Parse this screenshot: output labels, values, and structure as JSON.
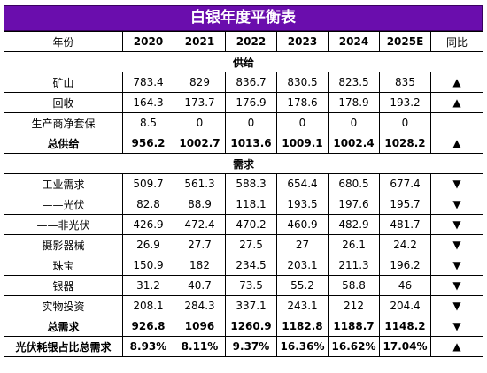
{
  "title": "白银年度平衡表",
  "header": {
    "label": "年份",
    "years": [
      "2020",
      "2021",
      "2022",
      "2023",
      "2024",
      "2025E"
    ],
    "change": "同比"
  },
  "supply": {
    "section_label": "供给",
    "rows": [
      {
        "label": "矿山",
        "values": [
          "783.4",
          "829",
          "836.7",
          "830.5",
          "823.5",
          "835"
        ],
        "trend": "▲"
      },
      {
        "label": "回收",
        "values": [
          "164.3",
          "173.7",
          "176.9",
          "178.6",
          "178.9",
          "193.2"
        ],
        "trend": "▲"
      },
      {
        "label": "生产商净套保",
        "values": [
          "8.5",
          "0",
          "0",
          "0",
          "0",
          "0"
        ],
        "trend": ""
      }
    ],
    "total": {
      "label": "总供给",
      "values": [
        "956.2",
        "1002.7",
        "1013.6",
        "1009.1",
        "1002.4",
        "1028.2"
      ],
      "trend": "▲"
    }
  },
  "demand": {
    "section_label": "需求",
    "rows": [
      {
        "label": "工业需求",
        "values": [
          "509.7",
          "561.3",
          "588.3",
          "654.4",
          "680.5",
          "677.4"
        ],
        "trend": "▼"
      },
      {
        "label": "——光伏",
        "values": [
          "82.8",
          "88.9",
          "118.1",
          "193.5",
          "197.6",
          "195.7"
        ],
        "trend": "▼"
      },
      {
        "label": "——非光伏",
        "values": [
          "426.9",
          "472.4",
          "470.2",
          "460.9",
          "482.9",
          "481.7"
        ],
        "trend": "▼"
      },
      {
        "label": "摄影器械",
        "values": [
          "26.9",
          "27.7",
          "27.5",
          "27",
          "26.1",
          "24.2"
        ],
        "trend": "▼"
      },
      {
        "label": "珠宝",
        "values": [
          "150.9",
          "182",
          "234.5",
          "203.1",
          "211.3",
          "196.2"
        ],
        "trend": "▼"
      },
      {
        "label": "银器",
        "values": [
          "31.2",
          "40.7",
          "73.5",
          "55.2",
          "58.8",
          "46"
        ],
        "trend": "▼"
      },
      {
        "label": "实物投资",
        "values": [
          "208.1",
          "284.3",
          "337.1",
          "243.1",
          "212",
          "204.4"
        ],
        "trend": "▼"
      }
    ],
    "total": {
      "label": "总需求",
      "values": [
        "926.8",
        "1096",
        "1260.9",
        "1182.8",
        "1188.7",
        "1148.2"
      ],
      "trend": "▼"
    }
  },
  "pv_ratio": {
    "label": "光伏耗银占比总需求",
    "values": [
      "8.93%",
      "8.11%",
      "9.37%",
      "16.36%",
      "16.62%",
      "17.04%"
    ],
    "trend": "▲"
  }
}
